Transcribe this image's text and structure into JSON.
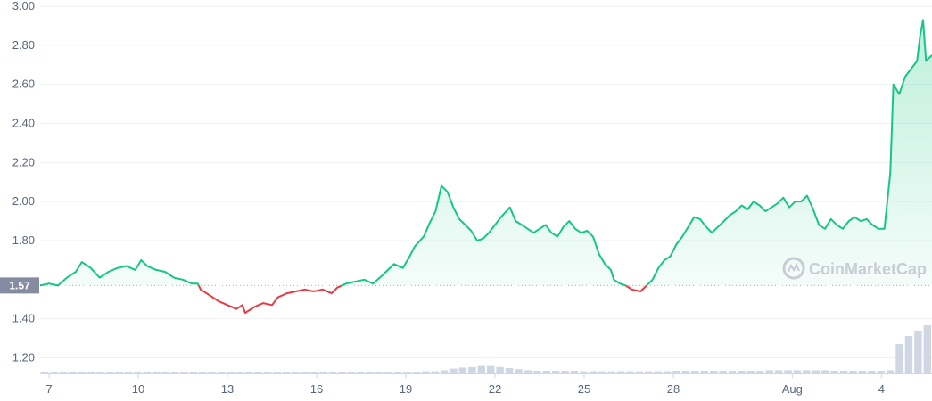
{
  "chart_data": {
    "type": "line",
    "title": "",
    "xlabel": "",
    "ylabel": "",
    "x_ticks": [
      {
        "label": "7",
        "day": 7
      },
      {
        "label": "10",
        "day": 10
      },
      {
        "label": "13",
        "day": 13
      },
      {
        "label": "16",
        "day": 16
      },
      {
        "label": "19",
        "day": 19
      },
      {
        "label": "22",
        "day": 22
      },
      {
        "label": "25",
        "day": 25
      },
      {
        "label": "28",
        "day": 28
      },
      {
        "label": "Aug",
        "day": 32
      },
      {
        "label": "4",
        "day": 35
      }
    ],
    "xlim": [
      6.7,
      36.7
    ],
    "ylim": [
      1.12,
      3.0
    ],
    "y_ticks": [
      "3.00",
      "2.80",
      "2.60",
      "2.40",
      "2.20",
      "2.00",
      "1.80",
      "1.40",
      "1.20"
    ],
    "baseline": {
      "value": 1.57,
      "label": "1.57"
    },
    "colors": {
      "above": "#16c784",
      "below": "#ea3943",
      "badge": "#858ca2",
      "volume": "#cfd6e4"
    },
    "series": [
      {
        "values": [
          [
            6.7,
            1.57
          ],
          [
            7.0,
            1.58
          ],
          [
            7.3,
            1.57
          ],
          [
            7.6,
            1.61
          ],
          [
            7.9,
            1.64
          ],
          [
            8.1,
            1.69
          ],
          [
            8.4,
            1.66
          ],
          [
            8.7,
            1.61
          ],
          [
            9.0,
            1.64
          ],
          [
            9.3,
            1.66
          ],
          [
            9.6,
            1.67
          ],
          [
            9.9,
            1.65
          ],
          [
            10.1,
            1.7
          ],
          [
            10.3,
            1.67
          ],
          [
            10.6,
            1.65
          ],
          [
            10.9,
            1.64
          ],
          [
            11.2,
            1.61
          ],
          [
            11.5,
            1.6
          ],
          [
            11.8,
            1.58
          ],
          [
            12.0,
            1.58
          ],
          [
            12.1,
            1.55
          ],
          [
            12.4,
            1.52
          ],
          [
            12.7,
            1.49
          ],
          [
            13.0,
            1.47
          ],
          [
            13.3,
            1.45
          ],
          [
            13.5,
            1.47
          ],
          [
            13.6,
            1.43
          ],
          [
            13.9,
            1.46
          ],
          [
            14.2,
            1.48
          ],
          [
            14.5,
            1.47
          ],
          [
            14.7,
            1.51
          ],
          [
            15.0,
            1.53
          ],
          [
            15.3,
            1.54
          ],
          [
            15.6,
            1.55
          ],
          [
            15.9,
            1.54
          ],
          [
            16.2,
            1.55
          ],
          [
            16.5,
            1.53
          ],
          [
            16.7,
            1.56
          ],
          [
            17.0,
            1.58
          ],
          [
            17.3,
            1.59
          ],
          [
            17.6,
            1.6
          ],
          [
            17.9,
            1.58
          ],
          [
            18.2,
            1.62
          ],
          [
            18.4,
            1.65
          ],
          [
            18.6,
            1.68
          ],
          [
            18.9,
            1.66
          ],
          [
            19.1,
            1.71
          ],
          [
            19.3,
            1.77
          ],
          [
            19.6,
            1.82
          ],
          [
            19.8,
            1.89
          ],
          [
            20.0,
            1.95
          ],
          [
            20.2,
            2.08
          ],
          [
            20.4,
            2.05
          ],
          [
            20.6,
            1.97
          ],
          [
            20.8,
            1.91
          ],
          [
            21.0,
            1.88
          ],
          [
            21.2,
            1.85
          ],
          [
            21.4,
            1.8
          ],
          [
            21.6,
            1.81
          ],
          [
            21.8,
            1.84
          ],
          [
            22.0,
            1.88
          ],
          [
            22.2,
            1.92
          ],
          [
            22.5,
            1.97
          ],
          [
            22.7,
            1.9
          ],
          [
            22.9,
            1.88
          ],
          [
            23.1,
            1.86
          ],
          [
            23.3,
            1.84
          ],
          [
            23.5,
            1.86
          ],
          [
            23.7,
            1.88
          ],
          [
            23.9,
            1.84
          ],
          [
            24.1,
            1.82
          ],
          [
            24.3,
            1.87
          ],
          [
            24.5,
            1.9
          ],
          [
            24.7,
            1.86
          ],
          [
            24.9,
            1.84
          ],
          [
            25.1,
            1.85
          ],
          [
            25.3,
            1.82
          ],
          [
            25.5,
            1.73
          ],
          [
            25.7,
            1.68
          ],
          [
            25.9,
            1.65
          ],
          [
            26.0,
            1.6
          ],
          [
            26.2,
            1.58
          ],
          [
            26.4,
            1.57
          ],
          [
            26.6,
            1.55
          ],
          [
            26.9,
            1.54
          ],
          [
            27.1,
            1.57
          ],
          [
            27.3,
            1.6
          ],
          [
            27.5,
            1.66
          ],
          [
            27.7,
            1.7
          ],
          [
            27.9,
            1.72
          ],
          [
            28.1,
            1.78
          ],
          [
            28.3,
            1.82
          ],
          [
            28.5,
            1.87
          ],
          [
            28.7,
            1.92
          ],
          [
            28.9,
            1.91
          ],
          [
            29.1,
            1.87
          ],
          [
            29.3,
            1.84
          ],
          [
            29.5,
            1.87
          ],
          [
            29.7,
            1.9
          ],
          [
            29.9,
            1.93
          ],
          [
            30.1,
            1.95
          ],
          [
            30.3,
            1.98
          ],
          [
            30.5,
            1.96
          ],
          [
            30.7,
            2.0
          ],
          [
            30.9,
            1.98
          ],
          [
            31.1,
            1.95
          ],
          [
            31.3,
            1.97
          ],
          [
            31.5,
            1.99
          ],
          [
            31.7,
            2.02
          ],
          [
            31.9,
            1.97
          ],
          [
            32.1,
            2.0
          ],
          [
            32.3,
            2.0
          ],
          [
            32.5,
            2.03
          ],
          [
            32.7,
            1.96
          ],
          [
            32.9,
            1.88
          ],
          [
            33.1,
            1.86
          ],
          [
            33.3,
            1.91
          ],
          [
            33.5,
            1.88
          ],
          [
            33.7,
            1.86
          ],
          [
            33.9,
            1.9
          ],
          [
            34.1,
            1.92
          ],
          [
            34.3,
            1.9
          ],
          [
            34.5,
            1.91
          ],
          [
            34.7,
            1.88
          ],
          [
            34.9,
            1.86
          ],
          [
            35.1,
            1.86
          ],
          [
            35.3,
            2.15
          ],
          [
            35.4,
            2.6
          ],
          [
            35.6,
            2.55
          ],
          [
            35.8,
            2.64
          ],
          [
            36.0,
            2.68
          ],
          [
            36.2,
            2.72
          ],
          [
            36.3,
            2.85
          ],
          [
            36.4,
            2.93
          ],
          [
            36.5,
            2.72
          ],
          [
            36.7,
            2.75
          ]
        ]
      }
    ],
    "volume": [
      0.03,
      0.03,
      0.03,
      0.03,
      0.03,
      0.03,
      0.03,
      0.03,
      0.03,
      0.03,
      0.03,
      0.03,
      0.03,
      0.03,
      0.03,
      0.03,
      0.03,
      0.03,
      0.03,
      0.03,
      0.03,
      0.03,
      0.03,
      0.03,
      0.03,
      0.03,
      0.03,
      0.03,
      0.03,
      0.03,
      0.03,
      0.03,
      0.03,
      0.03,
      0.03,
      0.03,
      0.03,
      0.03,
      0.03,
      0.03,
      0.03,
      0.04,
      0.04,
      0.06,
      0.09,
      0.11,
      0.12,
      0.14,
      0.14,
      0.12,
      0.1,
      0.08,
      0.06,
      0.05,
      0.05,
      0.05,
      0.05,
      0.05,
      0.04,
      0.04,
      0.04,
      0.04,
      0.04,
      0.04,
      0.04,
      0.04,
      0.04,
      0.04,
      0.05,
      0.05,
      0.05,
      0.05,
      0.05,
      0.05,
      0.05,
      0.05,
      0.05,
      0.05,
      0.06,
      0.06,
      0.06,
      0.06,
      0.06,
      0.06,
      0.06,
      0.05,
      0.05,
      0.05,
      0.05,
      0.05,
      0.05,
      0.06,
      0.55,
      0.7,
      0.8,
      0.9
    ],
    "watermark": "CoinMarketCap"
  }
}
